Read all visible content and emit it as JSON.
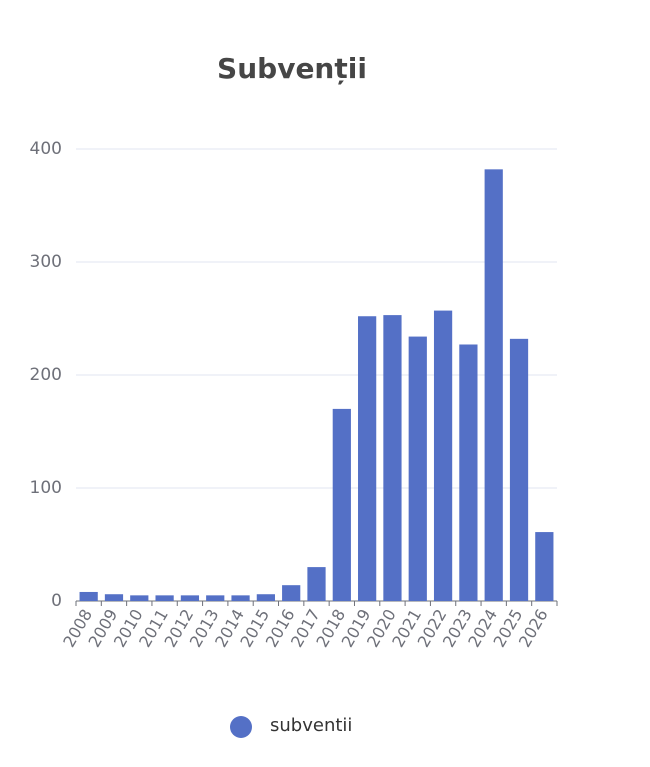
{
  "chart_data": {
    "type": "bar",
    "title": "Subvenții",
    "categories": [
      "2008",
      "2009",
      "2010",
      "2011",
      "2012",
      "2013",
      "2014",
      "2015",
      "2016",
      "2017",
      "2018",
      "2019",
      "2020",
      "2021",
      "2022",
      "2023",
      "2024",
      "2025",
      "2026"
    ],
    "series": [
      {
        "name": "subventii",
        "color": "#5470c6",
        "values": [
          8,
          6,
          5,
          5,
          5,
          5,
          5,
          6,
          14,
          30,
          170,
          252,
          253,
          234,
          257,
          227,
          382,
          232,
          61
        ]
      }
    ],
    "ylim": [
      0,
      400
    ],
    "yticks": [
      0,
      100,
      200,
      300,
      400
    ],
    "grid": true,
    "legend": "bottom"
  }
}
